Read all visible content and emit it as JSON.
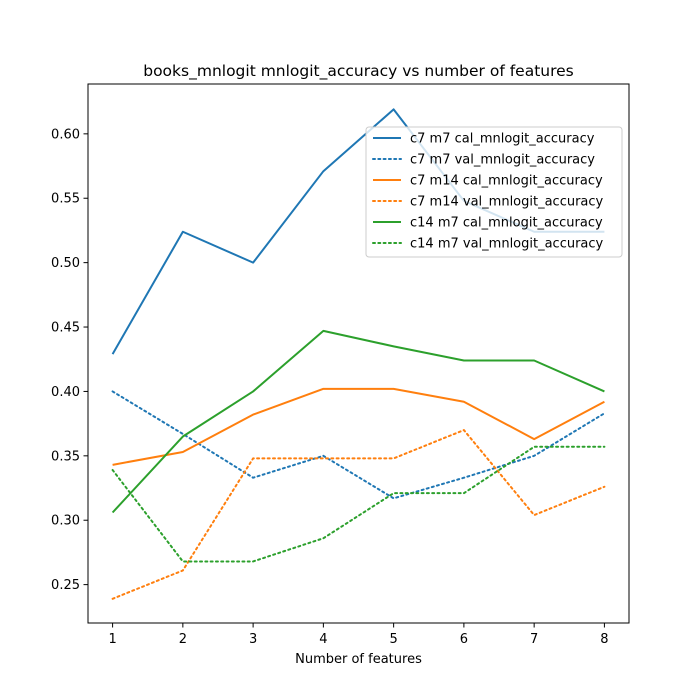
{
  "chart_data": {
    "type": "line",
    "title": "books_mnlogit mnlogit_accuracy vs number of features",
    "xlabel": "Number of features",
    "ylabel": "",
    "x": [
      1,
      2,
      3,
      4,
      5,
      6,
      7,
      8
    ],
    "xlim": [
      0.65,
      8.35
    ],
    "ylim": [
      0.2202,
      0.6387
    ],
    "xticks": [
      "1",
      "2",
      "3",
      "4",
      "5",
      "6",
      "7",
      "8"
    ],
    "yticks": [
      0.25,
      0.3,
      0.35,
      0.4,
      0.45,
      0.5,
      0.55,
      0.6
    ],
    "ytick_labels": [
      "0.25",
      "0.30",
      "0.35",
      "0.40",
      "0.45",
      "0.50",
      "0.55",
      "0.60"
    ],
    "grid": false,
    "legend_position": "upper right",
    "series": [
      {
        "name": "c7 m7 cal_mnlogit_accuracy",
        "color": "#1f77b4",
        "style": "solid",
        "values": [
          0.429,
          0.524,
          0.5,
          0.571,
          0.619,
          0.548,
          0.524,
          0.524
        ]
      },
      {
        "name": "c7 m7 val_mnlogit_accuracy",
        "color": "#1f77b4",
        "style": "dotted",
        "values": [
          0.4,
          0.367,
          0.333,
          0.35,
          0.317,
          0.333,
          0.35,
          0.383
        ]
      },
      {
        "name": "c7 m14 cal_mnlogit_accuracy",
        "color": "#ff7f0e",
        "style": "solid",
        "values": [
          0.343,
          0.353,
          0.382,
          0.402,
          0.402,
          0.392,
          0.363,
          0.392
        ]
      },
      {
        "name": "c7 m14 val_mnlogit_accuracy",
        "color": "#ff7f0e",
        "style": "dotted",
        "values": [
          0.239,
          0.261,
          0.348,
          0.348,
          0.348,
          0.37,
          0.304,
          0.326
        ]
      },
      {
        "name": "c14 m7 cal_mnlogit_accuracy",
        "color": "#2ca02c",
        "style": "solid",
        "values": [
          0.306,
          0.365,
          0.4,
          0.447,
          0.435,
          0.424,
          0.424,
          0.4
        ]
      },
      {
        "name": "c14 m7 val_mnlogit_accuracy",
        "color": "#2ca02c",
        "style": "dotted",
        "values": [
          0.339,
          0.268,
          0.268,
          0.286,
          0.321,
          0.321,
          0.357,
          0.357
        ]
      }
    ]
  }
}
